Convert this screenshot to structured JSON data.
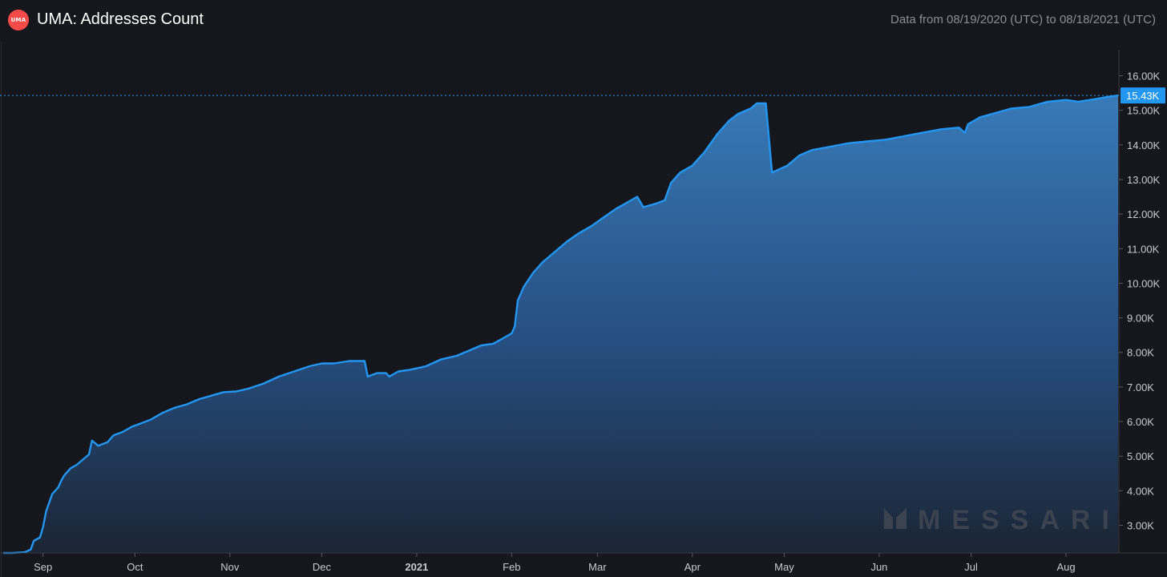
{
  "header": {
    "logo_text": "UMA",
    "title": "UMA: Addresses Count",
    "range": "Data from 08/19/2020 (UTC) to 08/18/2021 (UTC)"
  },
  "watermark": "MESSARI",
  "colors": {
    "background": "#16171c",
    "line": "#2196f3",
    "area_top": "#3a7fc0",
    "area_bottom": "#1b2535",
    "logo": "#ff4a4a",
    "axis_text": "#c9cad0",
    "badge": "#2196f3"
  },
  "chart_data": {
    "type": "area",
    "title": "UMA: Addresses Count",
    "xlabel": "",
    "ylabel": "",
    "grid": false,
    "x_start": "2020-08-19",
    "x_end": "2021-08-18",
    "ylim": [
      2200,
      16800
    ],
    "y_ticks": [
      "3.00K",
      "4.00K",
      "5.00K",
      "6.00K",
      "7.00K",
      "8.00K",
      "9.00K",
      "10.00K",
      "11.00K",
      "12.00K",
      "13.00K",
      "14.00K",
      "15.00K",
      "16.00K"
    ],
    "y_tick_values": [
      3000,
      4000,
      5000,
      6000,
      7000,
      8000,
      9000,
      10000,
      11000,
      12000,
      13000,
      14000,
      15000,
      16000
    ],
    "x_ticks": [
      {
        "label": "Sep",
        "date": "2020-09-01"
      },
      {
        "label": "Oct",
        "date": "2020-10-01"
      },
      {
        "label": "Nov",
        "date": "2020-11-01"
      },
      {
        "label": "Dec",
        "date": "2020-12-01"
      },
      {
        "label": "2021",
        "date": "2021-01-01",
        "bold": true
      },
      {
        "label": "Feb",
        "date": "2021-02-01"
      },
      {
        "label": "Mar",
        "date": "2021-03-01"
      },
      {
        "label": "Apr",
        "date": "2021-04-01"
      },
      {
        "label": "May",
        "date": "2021-05-01"
      },
      {
        "label": "Jun",
        "date": "2021-06-01"
      },
      {
        "label": "Jul",
        "date": "2021-07-01"
      },
      {
        "label": "Aug",
        "date": "2021-08-01"
      }
    ],
    "last_value": 15430,
    "last_value_label": "15.43K",
    "series": [
      {
        "name": "Addresses Count",
        "points": [
          [
            "2020-08-19",
            2200
          ],
          [
            "2020-08-22",
            2200
          ],
          [
            "2020-08-26",
            2220
          ],
          [
            "2020-08-28",
            2300
          ],
          [
            "2020-08-29",
            2550
          ],
          [
            "2020-08-31",
            2650
          ],
          [
            "2020-09-01",
            2950
          ],
          [
            "2020-09-02",
            3400
          ],
          [
            "2020-09-03",
            3650
          ],
          [
            "2020-09-04",
            3900
          ],
          [
            "2020-09-06",
            4100
          ],
          [
            "2020-09-07",
            4300
          ],
          [
            "2020-09-08",
            4450
          ],
          [
            "2020-09-10",
            4650
          ],
          [
            "2020-09-12",
            4750
          ],
          [
            "2020-09-14",
            4900
          ],
          [
            "2020-09-16",
            5050
          ],
          [
            "2020-09-17",
            5450
          ],
          [
            "2020-09-19",
            5300
          ],
          [
            "2020-09-22",
            5400
          ],
          [
            "2020-09-24",
            5600
          ],
          [
            "2020-09-27",
            5700
          ],
          [
            "2020-09-30",
            5850
          ],
          [
            "2020-10-03",
            5950
          ],
          [
            "2020-10-06",
            6050
          ],
          [
            "2020-10-10",
            6250
          ],
          [
            "2020-10-14",
            6400
          ],
          [
            "2020-10-18",
            6500
          ],
          [
            "2020-10-22",
            6650
          ],
          [
            "2020-10-26",
            6750
          ],
          [
            "2020-10-30",
            6850
          ],
          [
            "2020-11-03",
            6870
          ],
          [
            "2020-11-07",
            6950
          ],
          [
            "2020-11-12",
            7100
          ],
          [
            "2020-11-17",
            7300
          ],
          [
            "2020-11-22",
            7450
          ],
          [
            "2020-11-27",
            7600
          ],
          [
            "2020-12-01",
            7680
          ],
          [
            "2020-12-05",
            7680
          ],
          [
            "2020-12-10",
            7750
          ],
          [
            "2020-12-15",
            7750
          ],
          [
            "2020-12-16",
            7300
          ],
          [
            "2020-12-19",
            7400
          ],
          [
            "2020-12-22",
            7400
          ],
          [
            "2020-12-23",
            7300
          ],
          [
            "2020-12-26",
            7450
          ],
          [
            "2020-12-30",
            7500
          ],
          [
            "2021-01-04",
            7600
          ],
          [
            "2021-01-09",
            7800
          ],
          [
            "2021-01-14",
            7900
          ],
          [
            "2021-01-18",
            8050
          ],
          [
            "2021-01-22",
            8200
          ],
          [
            "2021-01-26",
            8250
          ],
          [
            "2021-01-29",
            8400
          ],
          [
            "2021-02-01",
            8550
          ],
          [
            "2021-02-02",
            8750
          ],
          [
            "2021-02-03",
            9500
          ],
          [
            "2021-02-05",
            9900
          ],
          [
            "2021-02-08",
            10300
          ],
          [
            "2021-02-11",
            10600
          ],
          [
            "2021-02-15",
            10900
          ],
          [
            "2021-02-19",
            11200
          ],
          [
            "2021-02-23",
            11450
          ],
          [
            "2021-02-27",
            11650
          ],
          [
            "2021-03-03",
            11900
          ],
          [
            "2021-03-07",
            12150
          ],
          [
            "2021-03-11",
            12350
          ],
          [
            "2021-03-14",
            12500
          ],
          [
            "2021-03-16",
            12200
          ],
          [
            "2021-03-20",
            12300
          ],
          [
            "2021-03-23",
            12400
          ],
          [
            "2021-03-25",
            12900
          ],
          [
            "2021-03-28",
            13200
          ],
          [
            "2021-04-01",
            13400
          ],
          [
            "2021-04-05",
            13800
          ],
          [
            "2021-04-09",
            14300
          ],
          [
            "2021-04-13",
            14700
          ],
          [
            "2021-04-16",
            14900
          ],
          [
            "2021-04-20",
            15050
          ],
          [
            "2021-04-22",
            15200
          ],
          [
            "2021-04-25",
            15200
          ],
          [
            "2021-04-27",
            13200
          ],
          [
            "2021-05-02",
            13400
          ],
          [
            "2021-05-06",
            13700
          ],
          [
            "2021-05-10",
            13850
          ],
          [
            "2021-05-16",
            13950
          ],
          [
            "2021-05-22",
            14050
          ],
          [
            "2021-05-28",
            14100
          ],
          [
            "2021-06-03",
            14150
          ],
          [
            "2021-06-09",
            14250
          ],
          [
            "2021-06-15",
            14350
          ],
          [
            "2021-06-21",
            14450
          ],
          [
            "2021-06-27",
            14500
          ],
          [
            "2021-06-29",
            14350
          ],
          [
            "2021-06-30",
            14600
          ],
          [
            "2021-07-04",
            14800
          ],
          [
            "2021-07-08",
            14900
          ],
          [
            "2021-07-14",
            15050
          ],
          [
            "2021-07-20",
            15100
          ],
          [
            "2021-07-26",
            15250
          ],
          [
            "2021-08-01",
            15300
          ],
          [
            "2021-08-05",
            15250
          ],
          [
            "2021-08-10",
            15320
          ],
          [
            "2021-08-14",
            15380
          ],
          [
            "2021-08-18",
            15430
          ]
        ]
      }
    ]
  }
}
